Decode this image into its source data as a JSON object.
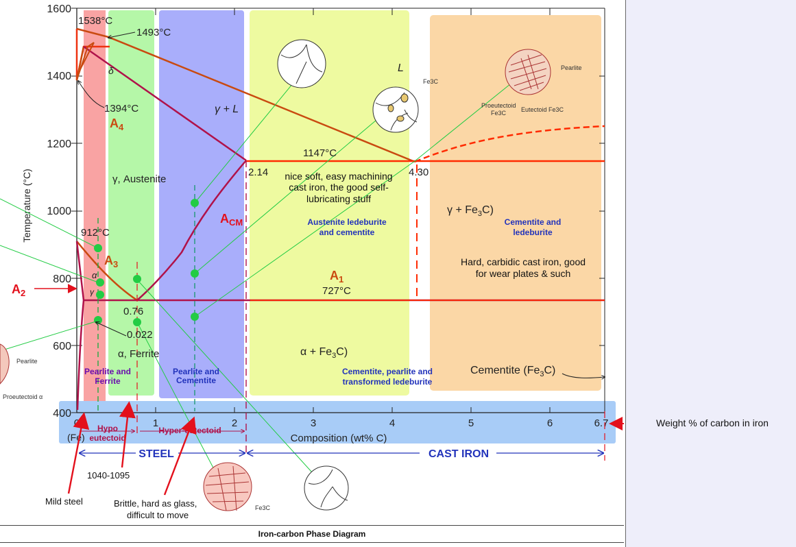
{
  "caption": "Iron-carbon Phase Diagram",
  "axes": {
    "ylabel": "Temperature (°C)",
    "xlabel": "Composition (wt% C)",
    "y_ticks": [
      "1600",
      "1400",
      "1200",
      "1000",
      "800",
      "600",
      "400"
    ],
    "x_ticks": [
      "0",
      "1",
      "2",
      "3",
      "4",
      "5",
      "6",
      "6.7"
    ],
    "x_sublabel": "(Fe)"
  },
  "points": {
    "t1538": "1538°C",
    "t1493": "1493°C",
    "t1394": "1394°C",
    "t1147": "1147°C",
    "t912": "912°C",
    "t727": "727°C",
    "c214": "2.14",
    "c430": "4.30",
    "c076": "0.76",
    "c0022": "0.022"
  },
  "lines": {
    "A4": "A",
    "A4_sub": "4",
    "A3": "A",
    "A3_sub": "3",
    "A2": "A",
    "A2_sub": "2",
    "A1": "A",
    "A1_sub": "1",
    "Acm": "A",
    "Acm_sub": "CM"
  },
  "phases": {
    "liquid": "L",
    "gamma_L": "γ + L",
    "delta": "δ",
    "austenite": "γ, Austenite",
    "ferrite": "α, Ferrite",
    "alpha": "α",
    "gamma": "γ",
    "gamma_fe3c": "γ + Fe",
    "alpha_fe3c": "α + Fe",
    "cementite": "Cementite (Fe",
    "sub3": "3",
    "c_close": "C)"
  },
  "notes": {
    "soft_iron": [
      "nice soft, easy machining",
      "cast iron, the good self-",
      "lubricating stuff"
    ],
    "hard_iron": [
      "Hard, carbidic cast iron, good",
      "for wear plates & such"
    ]
  },
  "band_labels": {
    "pearlite_ferrite": [
      "Pearlite and",
      "Ferrite"
    ],
    "pearlite_cementite": [
      "Pearlite and",
      "Cementite"
    ],
    "austenite_ledeburite": [
      "Austenite ledeburite",
      "and cementite"
    ],
    "cementite_pearlite": [
      "Cementite, pearlite and",
      "transformed ledeburite"
    ],
    "cementite_ledeburite": [
      "Cementite and",
      "ledeburite"
    ]
  },
  "regions": {
    "hypo": "Hypo",
    "eutectoid": "eutectoid",
    "hypereutectoid": "Hyper-eutectoid",
    "steel": "STEEL",
    "cast_iron": "CAST IRON"
  },
  "callouts": {
    "weight_pct": "Weight %  of carbon in iron",
    "mild_steel": "Mild steel",
    "steel_1040": "1040-1095",
    "brittle": [
      "Brittle, hard as glass,",
      "difficult to move"
    ]
  },
  "micro_labels": {
    "pearlite": "Pearlite",
    "proeutectoid_alpha": "Proeutectoid α",
    "proeutectoid_fe3c": [
      "Proeutectoid",
      "Fe3C"
    ],
    "eutectoid_fe3c": "Eutectoid Fe3C",
    "fe3c": "Fe3C"
  },
  "colors": {
    "red_band": "#f9a3a3",
    "green_band": "#b5f7a8",
    "blue_band": "#a9aefb",
    "yellow_band": "#eefaa0",
    "orange_band": "#fbd7a6",
    "axis_band": "#a8ccf7",
    "phase_line": "#c94a10",
    "boundary_line": "#b0124a",
    "eutectic_line": "#ff2a00",
    "guide_line": "#22cc44",
    "arrow_red": "#e3101c",
    "label_blue": "#2233bb",
    "label_purple": "#6a0dad"
  }
}
